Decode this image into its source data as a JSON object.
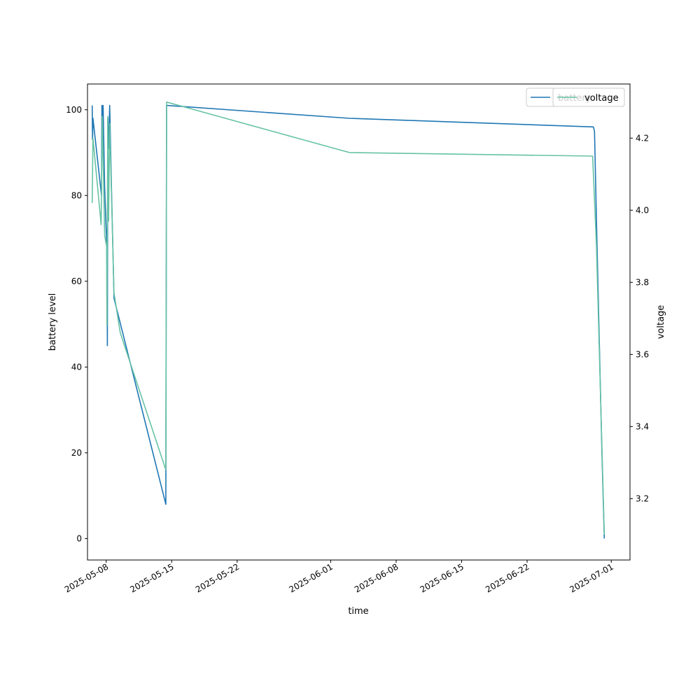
{
  "chart_data": {
    "type": "line",
    "title": "",
    "xlabel": "time",
    "ylabel": "battery level",
    "ylabel_right": "voltage",
    "x_axis": {
      "type": "date",
      "range": [
        "2025-05-06",
        "2025-07-03"
      ],
      "ticks": [
        "2025-05-08",
        "2025-05-15",
        "2025-05-22",
        "2025-06-01",
        "2025-06-08",
        "2025-06-15",
        "2025-06-22",
        "2025-07-01"
      ]
    },
    "y_left": {
      "range": [
        -5,
        106
      ],
      "ticks": [
        0,
        20,
        40,
        60,
        80,
        100
      ]
    },
    "y_right": {
      "range": [
        3.03,
        4.35
      ],
      "ticks": [
        "3.2",
        "3.4",
        "3.6",
        "3.8",
        "4.0",
        "4.2"
      ]
    },
    "grid": false,
    "legends": [
      {
        "placement": "top-right",
        "entries": [
          "battery"
        ]
      },
      {
        "placement": "top-right",
        "entries": [
          "voltage"
        ]
      }
    ],
    "series": [
      {
        "name": "battery",
        "axis": "left",
        "color": "#1f77b4",
        "points": [
          [
            "2025-05-06T12:00",
            101
          ],
          [
            "2025-05-06T13:00",
            93
          ],
          [
            "2025-05-06T14:00",
            98
          ],
          [
            "2025-05-07T12:00",
            80
          ],
          [
            "2025-05-07T13:00",
            101
          ],
          [
            "2025-05-07T15:00",
            90
          ],
          [
            "2025-05-07T16:00",
            101
          ],
          [
            "2025-05-07T20:00",
            82
          ],
          [
            "2025-05-08T01:00",
            69
          ],
          [
            "2025-05-08T02:00",
            72
          ],
          [
            "2025-05-08T03:00",
            45
          ],
          [
            "2025-05-08T04:00",
            98
          ],
          [
            "2025-05-08T06:00",
            91
          ],
          [
            "2025-05-08T09:00",
            101
          ],
          [
            "2025-05-08T14:00",
            80
          ],
          [
            "2025-05-08T20:00",
            56
          ],
          [
            "2025-05-14T09:00",
            8
          ],
          [
            "2025-05-14T11:00",
            101
          ],
          [
            "2025-06-03T00:00",
            98
          ],
          [
            "2025-06-29T02:00",
            96
          ],
          [
            "2025-06-29T05:00",
            95
          ],
          [
            "2025-06-29T10:00",
            74
          ],
          [
            "2025-06-30T00:00",
            20
          ],
          [
            "2025-06-30T06:00",
            0
          ]
        ]
      },
      {
        "name": "voltage",
        "axis": "right",
        "color": "#66c2a5",
        "points": [
          [
            "2025-05-06T12:00",
            4.02
          ],
          [
            "2025-05-06T14:00",
            4.2
          ],
          [
            "2025-05-07T11:00",
            3.96
          ],
          [
            "2025-05-07T14:00",
            4.26
          ],
          [
            "2025-05-07T20:00",
            3.93
          ],
          [
            "2025-05-08T01:00",
            3.9
          ],
          [
            "2025-05-08T02:00",
            3.68
          ],
          [
            "2025-05-08T04:00",
            4.26
          ],
          [
            "2025-05-08T06:00",
            3.97
          ],
          [
            "2025-05-08T09:00",
            4.24
          ],
          [
            "2025-05-08T20:00",
            3.77
          ],
          [
            "2025-05-09T12:00",
            3.66
          ],
          [
            "2025-05-14T09:00",
            3.28
          ],
          [
            "2025-05-14T11:00",
            4.3
          ],
          [
            "2025-06-03T00:00",
            4.16
          ],
          [
            "2025-06-29T00:00",
            4.15
          ],
          [
            "2025-06-29T10:00",
            3.9
          ],
          [
            "2025-06-30T06:00",
            3.1
          ]
        ]
      }
    ]
  }
}
